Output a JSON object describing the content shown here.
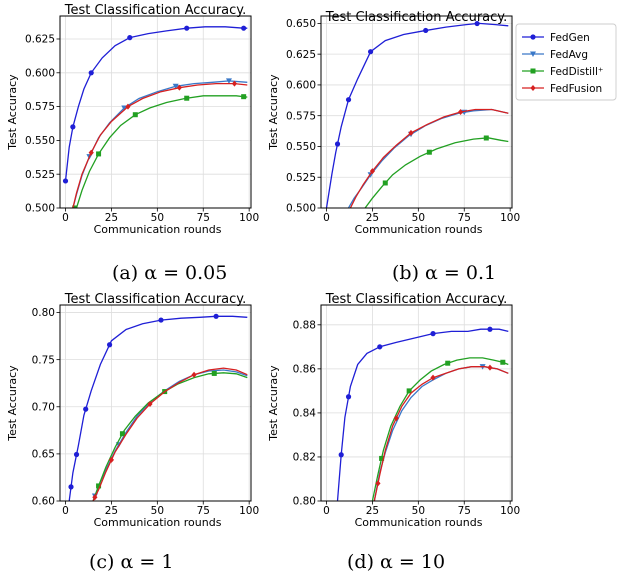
{
  "legend": {
    "position": "right",
    "entries": [
      {
        "name": "FedGen",
        "color": "#1f1fd6",
        "marker": "circle"
      },
      {
        "name": "FedAvg",
        "color": "#3a78c8",
        "marker": "triangle-down"
      },
      {
        "name": "FedDistill⁺",
        "color": "#22a022",
        "marker": "square"
      },
      {
        "name": "FedFusion",
        "color": "#d62020",
        "marker": "diamond"
      }
    ]
  },
  "chart_data": [
    {
      "type": "line",
      "title": "Test Classification Accuracy.",
      "caption": "(a) α = 0.05",
      "xlabel": "Communication rounds",
      "ylabel": "Test Accuracy",
      "xlim": [
        -3,
        101
      ],
      "ylim": [
        0.5,
        0.642
      ],
      "xticks": [
        0,
        25,
        50,
        75,
        100
      ],
      "yticks": [
        0.5,
        0.525,
        0.55,
        0.575,
        0.6,
        0.625
      ],
      "ytick_labels": [
        "0.500",
        "0.525",
        "0.550",
        "0.575",
        "0.600",
        "0.625"
      ],
      "series": [
        {
          "name": "FedGen",
          "x": [
            0,
            2,
            4,
            7,
            10,
            14,
            20,
            27,
            35,
            45,
            55,
            66,
            76,
            87,
            97,
            99
          ],
          "y": [
            0.52,
            0.545,
            0.56,
            0.575,
            0.588,
            0.6,
            0.611,
            0.62,
            0.626,
            0.629,
            0.631,
            0.633,
            0.634,
            0.634,
            0.633,
            0.633
          ],
          "markers_x": [
            0,
            4,
            14,
            35,
            66,
            97
          ]
        },
        {
          "name": "FedAvg",
          "x": [
            4,
            6,
            9,
            13,
            18,
            24,
            32,
            40,
            50,
            60,
            70,
            80,
            89,
            99
          ],
          "y": [
            0.5,
            0.51,
            0.524,
            0.538,
            0.552,
            0.563,
            0.574,
            0.581,
            0.586,
            0.59,
            0.592,
            0.593,
            0.594,
            0.593
          ],
          "markers_x": [
            13,
            32,
            60,
            89
          ]
        },
        {
          "name": "FedDistill⁺",
          "x": [
            6,
            9,
            13,
            18,
            24,
            30,
            38,
            46,
            55,
            65,
            75,
            85,
            93,
            99
          ],
          "y": [
            0.5,
            0.513,
            0.527,
            0.54,
            0.552,
            0.561,
            0.569,
            0.574,
            0.578,
            0.581,
            0.583,
            0.583,
            0.583,
            0.582
          ],
          "markers_x": [
            5,
            18,
            38,
            66,
            97
          ]
        },
        {
          "name": "FedFusion",
          "x": [
            4,
            6,
            9,
            14,
            19,
            25,
            34,
            42,
            52,
            62,
            72,
            82,
            92,
            99
          ],
          "y": [
            0.5,
            0.511,
            0.525,
            0.541,
            0.554,
            0.564,
            0.575,
            0.581,
            0.586,
            0.589,
            0.591,
            0.592,
            0.592,
            0.591
          ],
          "markers_x": [
            14,
            34,
            62,
            92
          ]
        }
      ]
    },
    {
      "type": "line",
      "title": "Test Classification Accuracy.",
      "caption": "(b) α = 0.1",
      "xlabel": "Communication rounds",
      "ylabel": "Test Accuracy",
      "xlim": [
        -3,
        101
      ],
      "ylim": [
        0.5,
        0.656
      ],
      "xticks": [
        0,
        25,
        50,
        75,
        100
      ],
      "yticks": [
        0.5,
        0.525,
        0.55,
        0.575,
        0.6,
        0.625,
        0.65
      ],
      "ytick_labels": [
        "0.500",
        "0.525",
        "0.550",
        "0.575",
        "0.600",
        "0.625",
        "0.650"
      ],
      "series": [
        {
          "name": "FedGen",
          "x": [
            0,
            3,
            5,
            8,
            12,
            17,
            24,
            32,
            42,
            53,
            65,
            76,
            83,
            92,
            99
          ],
          "y": [
            0.5,
            0.528,
            0.545,
            0.566,
            0.588,
            0.605,
            0.627,
            0.636,
            0.641,
            0.644,
            0.647,
            0.649,
            0.65,
            0.649,
            0.648
          ],
          "markers_x": [
            6,
            12,
            24,
            54,
            82
          ]
        },
        {
          "name": "FedAvg",
          "x": [
            12,
            15,
            19,
            24,
            30,
            37,
            45,
            54,
            63,
            72,
            80,
            90,
            99
          ],
          "y": [
            0.5,
            0.508,
            0.516,
            0.527,
            0.538,
            0.549,
            0.559,
            0.567,
            0.573,
            0.577,
            0.579,
            0.58,
            0.577
          ],
          "markers_x": [
            24,
            46,
            75
          ]
        },
        {
          "name": "FedDistill⁺",
          "x": [
            21,
            25,
            30,
            36,
            43,
            51,
            60,
            70,
            80,
            88,
            95,
            99
          ],
          "y": [
            0.5,
            0.508,
            0.517,
            0.527,
            0.535,
            0.542,
            0.548,
            0.553,
            0.556,
            0.557,
            0.555,
            0.554
          ],
          "markers_x": [
            32,
            56,
            87
          ]
        },
        {
          "name": "FedFusion",
          "x": [
            13,
            16,
            20,
            25,
            31,
            38,
            46,
            55,
            64,
            73,
            81,
            90,
            99
          ],
          "y": [
            0.5,
            0.509,
            0.519,
            0.53,
            0.541,
            0.551,
            0.561,
            0.568,
            0.574,
            0.578,
            0.58,
            0.58,
            0.577
          ],
          "markers_x": [
            25,
            46,
            73
          ]
        }
      ]
    },
    {
      "type": "line",
      "title": "Test Classification Accuracy.",
      "caption": "(c) α = 1",
      "xlabel": "Communication rounds",
      "ylabel": "Test Accuracy",
      "xlim": [
        -3,
        101
      ],
      "ylim": [
        0.6,
        0.808
      ],
      "xticks": [
        0,
        25,
        50,
        75,
        100
      ],
      "yticks": [
        0.6,
        0.65,
        0.7,
        0.75,
        0.8
      ],
      "ytick_labels": [
        "0.60",
        "0.65",
        "0.70",
        "0.75",
        "0.80"
      ],
      "series": [
        {
          "name": "FedGen",
          "x": [
            2,
            4,
            7,
            10,
            14,
            19,
            25,
            33,
            42,
            52,
            63,
            73,
            82,
            91,
            99
          ],
          "y": [
            0.6,
            0.63,
            0.659,
            0.691,
            0.717,
            0.745,
            0.77,
            0.782,
            0.788,
            0.792,
            0.794,
            0.795,
            0.796,
            0.796,
            0.795
          ],
          "markers_x": [
            3,
            6,
            11,
            24,
            52,
            82
          ]
        },
        {
          "name": "FedAvg",
          "x": [
            15,
            18,
            22,
            27,
            33,
            39,
            46,
            54,
            62,
            70,
            78,
            86,
            93,
            99
          ],
          "y": [
            0.6,
            0.616,
            0.633,
            0.653,
            0.673,
            0.69,
            0.705,
            0.717,
            0.727,
            0.734,
            0.738,
            0.739,
            0.737,
            0.733
          ],
          "markers_x": [
            16,
            29
          ]
        },
        {
          "name": "FedDistill⁺",
          "x": [
            15,
            18,
            22,
            27,
            32,
            38,
            45,
            53,
            61,
            70,
            78,
            86,
            93,
            99
          ],
          "y": [
            0.6,
            0.616,
            0.636,
            0.657,
            0.675,
            0.69,
            0.704,
            0.715,
            0.724,
            0.731,
            0.735,
            0.736,
            0.735,
            0.731
          ],
          "markers_x": [
            18,
            31,
            54,
            81
          ]
        },
        {
          "name": "FedFusion",
          "x": [
            15,
            18,
            22,
            27,
            33,
            39,
            46,
            54,
            62,
            70,
            78,
            86,
            93,
            99
          ],
          "y": [
            0.6,
            0.612,
            0.631,
            0.652,
            0.671,
            0.688,
            0.703,
            0.716,
            0.726,
            0.734,
            0.739,
            0.741,
            0.739,
            0.734
          ],
          "markers_x": [
            16,
            25,
            46,
            70
          ]
        }
      ]
    },
    {
      "type": "line",
      "title": "Test Classification Accuracy.",
      "caption": "(d) α = 10",
      "xlabel": "Communication rounds",
      "ylabel": "Test Accuracy",
      "xlim": [
        -3,
        101
      ],
      "ylim": [
        0.8,
        0.889
      ],
      "xticks": [
        0,
        25,
        50,
        75,
        100
      ],
      "yticks": [
        0.8,
        0.82,
        0.84,
        0.86,
        0.88
      ],
      "ytick_labels": [
        "0.80",
        "0.82",
        "0.84",
        "0.86",
        "0.88"
      ],
      "series": [
        {
          "name": "FedGen",
          "x": [
            6,
            8,
            10,
            13,
            17,
            22,
            29,
            38,
            48,
            58,
            68,
            77,
            84,
            89,
            94,
            99
          ],
          "y": [
            0.8,
            0.821,
            0.838,
            0.852,
            0.862,
            0.867,
            0.87,
            0.872,
            0.874,
            0.876,
            0.877,
            0.877,
            0.878,
            0.878,
            0.878,
            0.877
          ],
          "markers_x": [
            8,
            12,
            29,
            58,
            89
          ]
        },
        {
          "name": "FedAvg",
          "x": [
            26,
            29,
            32,
            36,
            41,
            46,
            52,
            58,
            65,
            72,
            79,
            86,
            93,
            99
          ],
          "y": [
            0.8,
            0.813,
            0.822,
            0.832,
            0.841,
            0.847,
            0.852,
            0.855,
            0.858,
            0.86,
            0.861,
            0.861,
            0.86,
            0.858
          ],
          "markers_x": [
            85
          ]
        },
        {
          "name": "FedDistill⁺",
          "x": [
            25,
            28,
            31,
            35,
            40,
            45,
            51,
            57,
            64,
            71,
            78,
            85,
            91,
            96,
            99
          ],
          "y": [
            0.8,
            0.812,
            0.823,
            0.834,
            0.843,
            0.85,
            0.855,
            0.859,
            0.862,
            0.864,
            0.865,
            0.865,
            0.864,
            0.863,
            0.862
          ],
          "markers_x": [
            30,
            45,
            66,
            96
          ]
        },
        {
          "name": "FedFusion",
          "x": [
            26,
            29,
            32,
            36,
            41,
            46,
            52,
            58,
            65,
            72,
            79,
            86,
            93,
            99
          ],
          "y": [
            0.8,
            0.812,
            0.823,
            0.834,
            0.843,
            0.849,
            0.853,
            0.856,
            0.858,
            0.86,
            0.861,
            0.861,
            0.86,
            0.858
          ],
          "markers_x": [
            28,
            38,
            58,
            89
          ]
        }
      ]
    }
  ]
}
